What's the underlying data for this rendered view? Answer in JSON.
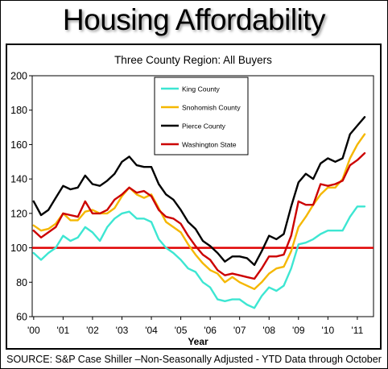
{
  "title": "Housing Affordability",
  "source": "SOURCE:  S&P Case Shiller –Non-Seasonally Adjusted -  YTD Data through October",
  "chart_data": {
    "type": "line",
    "title": "Three County Region: All Buyers",
    "xlabel": "Year",
    "ylabel": "",
    "ylim": [
      60,
      200
    ],
    "xlim": [
      -0.05,
      11.55
    ],
    "yticks": [
      60,
      80,
      100,
      120,
      140,
      160,
      180,
      200
    ],
    "xticks": [
      {
        "value": 0,
        "label": "'00"
      },
      {
        "value": 1,
        "label": "'01"
      },
      {
        "value": 2,
        "label": "'02"
      },
      {
        "value": 3,
        "label": "'03"
      },
      {
        "value": 4,
        "label": "'04"
      },
      {
        "value": 5,
        "label": "'05"
      },
      {
        "value": 6,
        "label": "'06"
      },
      {
        "value": 7,
        "label": "'07"
      },
      {
        "value": 8,
        "label": "'08"
      },
      {
        "value": 9,
        "label": "'09"
      },
      {
        "value": 10,
        "label": "'10"
      },
      {
        "value": 11,
        "label": "'11"
      }
    ],
    "grid": false,
    "legend_position": "top-center",
    "reference_line": {
      "value": 100,
      "color": "#e00000"
    },
    "x": [
      0.0,
      0.25,
      0.5,
      0.75,
      1.0,
      1.25,
      1.5,
      1.75,
      2.0,
      2.25,
      2.5,
      2.75,
      3.0,
      3.25,
      3.5,
      3.75,
      4.0,
      4.25,
      4.5,
      4.75,
      5.0,
      5.25,
      5.5,
      5.75,
      6.0,
      6.25,
      6.5,
      6.75,
      7.0,
      7.25,
      7.5,
      7.75,
      8.0,
      8.25,
      8.5,
      8.75,
      9.0,
      9.25,
      9.5,
      9.75,
      10.0,
      10.25,
      10.5,
      10.75,
      11.0,
      11.25
    ],
    "series": [
      {
        "name": "King County",
        "color": "#3de6d2",
        "values": [
          97,
          93,
          97,
          100,
          107,
          104,
          106,
          112,
          109,
          104,
          112,
          117,
          120,
          121,
          117,
          117,
          115,
          105,
          100,
          97,
          93,
          88,
          86,
          80,
          77,
          70,
          69,
          70,
          70,
          67,
          65,
          72,
          77,
          75,
          78,
          88,
          102,
          103,
          105,
          108,
          110,
          110,
          110,
          118,
          124,
          124
        ]
      },
      {
        "name": "Snohomish County",
        "color": "#f5b700",
        "values": [
          113,
          110,
          111,
          114,
          120,
          116,
          116,
          121,
          122,
          120,
          120,
          123,
          130,
          135,
          131,
          129,
          131,
          123,
          115,
          112,
          109,
          102,
          96,
          91,
          87,
          85,
          80,
          83,
          80,
          78,
          76,
          80,
          85,
          88,
          89,
          98,
          112,
          118,
          125,
          131,
          135,
          135,
          140,
          152,
          160,
          166
        ]
      },
      {
        "name": "Pierce County",
        "color": "#000000",
        "values": [
          127,
          119,
          122,
          129,
          136,
          134,
          135,
          142,
          137,
          136,
          139,
          143,
          150,
          153,
          148,
          147,
          147,
          137,
          131,
          128,
          122,
          115,
          111,
          104,
          101,
          97,
          92,
          95,
          95,
          94,
          90,
          98,
          107,
          105,
          108,
          124,
          138,
          143,
          140,
          149,
          152,
          150,
          152,
          166,
          171,
          176
        ]
      },
      {
        "name": "Washington State",
        "color": "#cc0000",
        "values": [
          110,
          106,
          109,
          112,
          120,
          119,
          118,
          127,
          120,
          120,
          122,
          128,
          131,
          135,
          132,
          133,
          130,
          122,
          118,
          117,
          114,
          107,
          101,
          96,
          93,
          87,
          84,
          85,
          84,
          83,
          82,
          88,
          95,
          95,
          96,
          107,
          127,
          125,
          125,
          137,
          136,
          137,
          139,
          148,
          151,
          155
        ]
      }
    ]
  }
}
